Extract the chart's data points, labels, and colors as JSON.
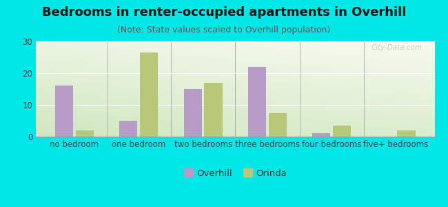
{
  "title": "Bedrooms in renter-occupied apartments in Overhill",
  "subtitle": "(Note: State values scaled to Overhill population)",
  "categories": [
    "no bedroom",
    "one bedroom",
    "two bedrooms",
    "three bedrooms",
    "four bedrooms",
    "five+ bedrooms"
  ],
  "overhill_values": [
    16,
    5,
    15,
    22,
    1,
    0
  ],
  "orinda_values": [
    2,
    26.5,
    17,
    7.5,
    3.5,
    2
  ],
  "overhill_color": "#b89cc8",
  "orinda_color": "#b8c878",
  "background_outer": "#00e8e8",
  "background_inner_topleft": "#e8f4e0",
  "background_inner_topright": "#f8faf0",
  "background_inner_bottom": "#d0e8c0",
  "ylim": [
    0,
    30
  ],
  "yticks": [
    0,
    10,
    20,
    30
  ],
  "bar_width": 0.28,
  "title_fontsize": 13,
  "subtitle_fontsize": 9,
  "tick_fontsize": 8.5,
  "legend_fontsize": 9.5
}
